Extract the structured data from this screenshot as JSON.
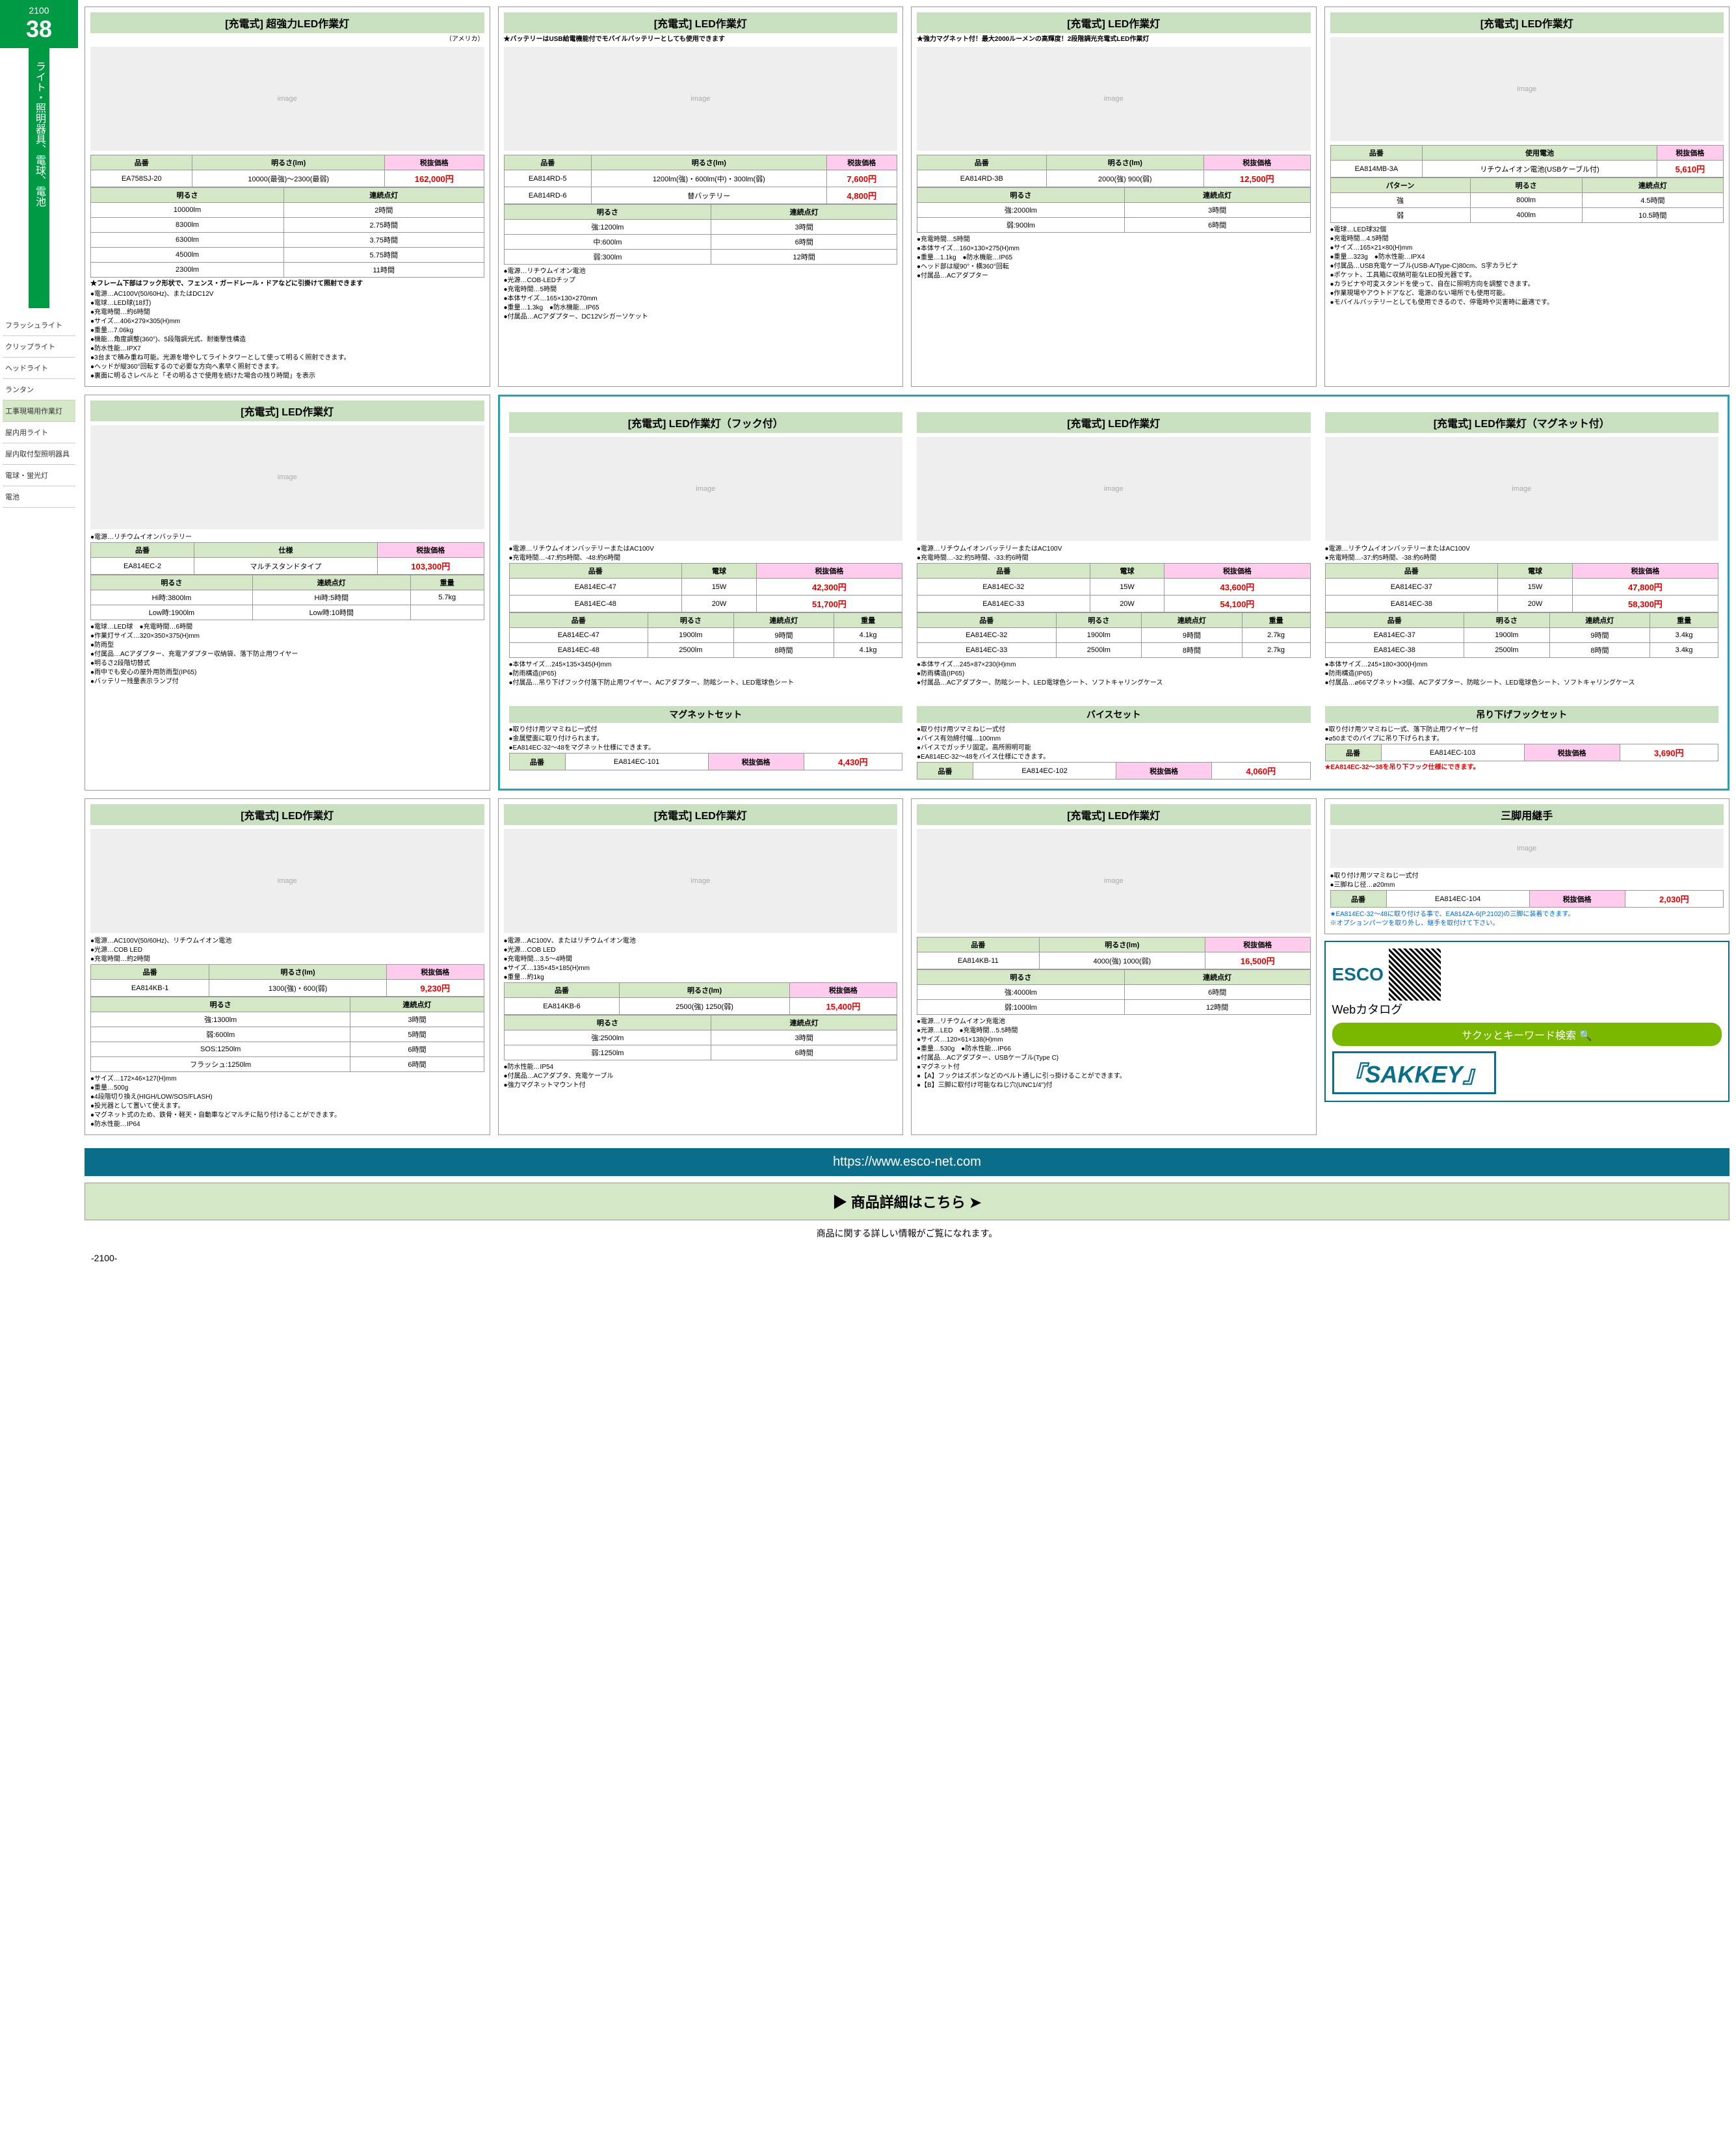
{
  "meta": {
    "page_top": "2100",
    "section_num": "38",
    "section_name": "ライト・照明器具、電球、電池",
    "page_bottom": "-2100-"
  },
  "side_nav": [
    {
      "label": "フラッシュライト"
    },
    {
      "label": "クリップライト"
    },
    {
      "label": "ヘッドライト"
    },
    {
      "label": "ランタン"
    },
    {
      "label": "工事現場用作業灯",
      "active": true
    },
    {
      "label": "屋内用ライト"
    },
    {
      "label": "屋内取付型照明器具"
    },
    {
      "label": "電球・蛍光灯"
    },
    {
      "label": "電池"
    }
  ],
  "cards": {
    "c1": {
      "title": "[充電式] 超強力LED作業灯",
      "origin": "（アメリカ）",
      "th": [
        "品番",
        "明るさ(lm)",
        "税抜価格"
      ],
      "row": [
        "EA758SJ-20",
        "10000(最強)～2300(最弱)",
        "162,000円"
      ],
      "spec_th": [
        "明るさ",
        "連続点灯"
      ],
      "spec": [
        [
          "10000lm",
          "2時間"
        ],
        [
          "8300lm",
          "2.75時間"
        ],
        [
          "6300lm",
          "3.75時間"
        ],
        [
          "4500lm",
          "5.75時間"
        ],
        [
          "2300lm",
          "11時間"
        ]
      ],
      "star": "★フレーム下部はフック形状で、フェンス・ガードレール・ドアなどに引掛けて照射できます",
      "notes": [
        "電源…AC100V(50/60Hz)、またはDC12V",
        "電球…LED球(18灯)",
        "充電時間…約6時間",
        "サイズ…406×279×305(H)mm",
        "重量…7.06kg",
        "機能…角度調整(360°)、5段階調光式、耐衝撃性構造",
        "防水性能…IPX7",
        "3台まで積み重ね可能。光源を増やしてライトタワーとして使って明るく照射できます。",
        "ヘッドが縦360°回転するので必要な方向へ素早く照射できます。",
        "裏面に明るさレベルと「その明るさで使用を続けた場合の残り時間」を表示"
      ]
    },
    "c2": {
      "title": "[充電式] LED作業灯",
      "star": "★バッテリーはUSB給電機能付でモバイルバッテリーとしても使用できます",
      "th": [
        "品番",
        "明るさ(lm)",
        "税抜価格"
      ],
      "row1": [
        "EA814RD-5",
        "1200lm(強)・600lm(中)・300lm(弱)",
        "7,600円"
      ],
      "row2": [
        "EA814RD-6",
        "替バッテリー",
        "4,800円"
      ],
      "spec_th": [
        "明るさ",
        "連続点灯"
      ],
      "spec": [
        [
          "強:1200lm",
          "3時間"
        ],
        [
          "中:600lm",
          "6時間"
        ],
        [
          "弱:300lm",
          "12時間"
        ]
      ],
      "notes": [
        "電源…リチウムイオン電池",
        "光源…COB-LEDチップ",
        "充電時間…5時間",
        "本体サイズ…165×130×270mm",
        "重量…1.3kg　●防水機能…IP65",
        "付属品…ACアダプター、DC12Vシガーソケット"
      ]
    },
    "c3": {
      "title": "[充電式] LED作業灯",
      "star": "★強力マグネット付！最大2000ルーメンの高輝度！2段階調光充電式LED作業灯",
      "star2": "●電源…リチウムイオン電池\n●電球…LED球",
      "th": [
        "品番",
        "明るさ(lm)",
        "税抜価格"
      ],
      "row": [
        "EA814RD-3B",
        "2000(強) 900(弱)",
        "12,500円"
      ],
      "spec_th": [
        "明るさ",
        "連続点灯"
      ],
      "spec": [
        [
          "強:2000lm",
          "3時間"
        ],
        [
          "弱:900lm",
          "6時間"
        ]
      ],
      "notes": [
        "充電時間…5時間",
        "本体サイズ…160×130×275(H)mm",
        "重量…1.1kg　●防水機能…IP65",
        "ヘッド部は縦90°・横360°回転",
        "付属品…ACアダプター"
      ]
    },
    "c4": {
      "title": "[充電式] LED作業灯",
      "th": [
        "品番",
        "使用電池",
        "税抜価格"
      ],
      "row": [
        "EA814MB-3A",
        "リチウムイオン電池(USBケーブル付)",
        "5,610円"
      ],
      "spec_th": [
        "パターン",
        "明るさ",
        "連続点灯"
      ],
      "spec": [
        [
          "強",
          "800lm",
          "4.5時間"
        ],
        [
          "弱",
          "400lm",
          "10.5時間"
        ]
      ],
      "notes": [
        "電球…LED球32個",
        "充電時間…4.5時間",
        "サイズ…165×21×80(H)mm",
        "重量…323g　●防水性能…IPX4",
        "付属品…USB充電ケーブル(USB-A/Type-C)80cm、S字カラビナ",
        "ポケット、工具箱に収納可能なLED投光器です。",
        "カラビナや可変スタンドを使って、自在に照明方向を調整できます。",
        "作業現場やアウトドアなど、電源のない場所でも使用可能。",
        "モバイルバッテリーとしても使用できるので、停電時や災害時に最適です。"
      ]
    },
    "c5": {
      "title": "[充電式] LED作業灯",
      "bullet": "●電源…リチウムイオンバッテリー",
      "th": [
        "品番",
        "仕様",
        "税抜価格"
      ],
      "row": [
        "EA814EC-2",
        "マルチスタンドタイプ",
        "103,300円"
      ],
      "spec_th": [
        "明るさ",
        "連続点灯",
        "重量"
      ],
      "spec": [
        [
          "Hi時:3800lm",
          "Hi時:5時間",
          "5.7kg"
        ],
        [
          "Low時:1900lm",
          "Low時:10時間",
          ""
        ]
      ],
      "notes": [
        "電球…LED球　●充電時間…6時間",
        "作業灯サイズ…320×350×375(H)mm",
        "防雨型",
        "付属品…ACアダプター、充電アダプター収納袋、落下防止用ワイヤー",
        "明るさ2段階切替式",
        "雨中でも安心の屋外用防雨型(IP65)",
        "バッテリー残量表示ランプ付"
      ]
    },
    "ec_hook": {
      "title": "[充電式] LED作業灯（フック付）",
      "bullets": [
        "電源…リチウムイオンバッテリーまたはAC100V",
        "充電時間…-47:約5時間、-48:約6時間"
      ],
      "th": [
        "品番",
        "電球",
        "税抜価格"
      ],
      "rows": [
        [
          "EA814EC-47",
          "15W",
          "42,300円"
        ],
        [
          "EA814EC-48",
          "20W",
          "51,700円"
        ]
      ],
      "spec_th": [
        "品番",
        "明るさ",
        "連続点灯",
        "重量"
      ],
      "spec": [
        [
          "EA814EC-47",
          "1900lm",
          "9時間",
          "4.1kg"
        ],
        [
          "EA814EC-48",
          "2500lm",
          "8時間",
          "4.1kg"
        ]
      ],
      "notes": [
        "本体サイズ…245×135×345(H)mm",
        "防雨構造(IP65)",
        "付属品…吊り下げフック付落下防止用ワイヤー、ACアダプター、防眩シート、LED電球色シート"
      ]
    },
    "ec_std": {
      "title": "[充電式] LED作業灯",
      "bullets": [
        "電源…リチウムイオンバッテリーまたはAC100V",
        "充電時間…-32:約5時間、-33:約6時間"
      ],
      "th": [
        "品番",
        "電球",
        "税抜価格"
      ],
      "rows": [
        [
          "EA814EC-32",
          "15W",
          "43,600円"
        ],
        [
          "EA814EC-33",
          "20W",
          "54,100円"
        ]
      ],
      "spec_th": [
        "品番",
        "明るさ",
        "連続点灯",
        "重量"
      ],
      "spec": [
        [
          "EA814EC-32",
          "1900lm",
          "9時間",
          "2.7kg"
        ],
        [
          "EA814EC-33",
          "2500lm",
          "8時間",
          "2.7kg"
        ]
      ],
      "notes": [
        "本体サイズ…245×87×230(H)mm",
        "防雨構造(IP65)",
        "付属品…ACアダプター、防眩シート、LED電球色シート、ソフトキャリングケース"
      ]
    },
    "ec_mag": {
      "title": "[充電式] LED作業灯（マグネット付）",
      "bullets": [
        "電源…リチウムイオンバッテリーまたはAC100V",
        "充電時間…-37:約5時間、-38:約6時間"
      ],
      "th": [
        "品番",
        "電球",
        "税抜価格"
      ],
      "rows": [
        [
          "EA814EC-37",
          "15W",
          "47,800円"
        ],
        [
          "EA814EC-38",
          "20W",
          "58,300円"
        ]
      ],
      "spec_th": [
        "品番",
        "明るさ",
        "連続点灯",
        "重量"
      ],
      "spec": [
        [
          "EA814EC-37",
          "1900lm",
          "9時間",
          "3.4kg"
        ],
        [
          "EA814EC-38",
          "2500lm",
          "8時間",
          "3.4kg"
        ]
      ],
      "notes": [
        "本体サイズ…245×180×300(H)mm",
        "防雨構造(IP65)",
        "付属品…⌀66マグネット×3個、ACアダプター、防眩シート、LED電球色シート、ソフトキャリングケース"
      ]
    },
    "acc1": {
      "title": "マグネットセット",
      "bullets": [
        "取り付け用ツマミねじ一式付",
        "金属壁面に取り付けられます。",
        "EA814EC-32～48をマグネット仕様にできます。"
      ],
      "th": [
        "品番",
        "税抜価格"
      ],
      "row": [
        "EA814EC-101",
        "4,430円"
      ]
    },
    "acc2": {
      "title": "バイスセット",
      "bullets": [
        "取り付け用ツマミねじ一式付",
        "バイス有効締付幅…100mm",
        "バイスでガッチリ固定。高所照明可能",
        "EA814EC-32～48をバイス仕様にできます。"
      ],
      "th": [
        "品番",
        "税抜価格"
      ],
      "row": [
        "EA814EC-102",
        "4,060円"
      ]
    },
    "acc3": {
      "title": "吊り下げフックセット",
      "bullets": [
        "取り付け用ツマミねじ一式、落下防止用ワイヤー付",
        "⌀50までのパイプに吊り下げられます。"
      ],
      "th": [
        "品番",
        "税抜価格"
      ],
      "row": [
        "EA814EC-103",
        "3,690円"
      ],
      "foot": "★EA814EC-32～38を吊り下フック仕様にできます。"
    },
    "kb1": {
      "title": "[充電式] LED作業灯",
      "bullets": [
        "電源…AC100V(50/60Hz)、リチウムイオン電池",
        "光源…COB LED",
        "充電時間…約2時間"
      ],
      "th": [
        "品番",
        "明るさ(lm)",
        "税抜価格"
      ],
      "row": [
        "EA814KB-1",
        "1300(強)・600(弱)",
        "9,230円"
      ],
      "spec_th": [
        "明るさ",
        "連続点灯"
      ],
      "spec": [
        [
          "強:1300lm",
          "3時間"
        ],
        [
          "弱:600lm",
          "5時間"
        ],
        [
          "SOS:1250lm",
          "6時間"
        ],
        [
          "フラッシュ:1250lm",
          "6時間"
        ]
      ],
      "notes": [
        "サイズ…172×46×127(H)mm",
        "重量…500g",
        "4段階切り換え(HIGH/LOW/SOS/FLASH)",
        "投光器として置いて使えます。",
        "マグネット式のため、鉄骨・軽天・自動車などマルチに貼り付けることができます。",
        "防水性能…IP64"
      ]
    },
    "kb6": {
      "title": "[充電式] LED作業灯",
      "bullets": [
        "電源…AC100V、またはリチウムイオン電池",
        "光源…COB LED",
        "充電時間…3.5～4時間",
        "サイズ…135×45×185(H)mm",
        "重量…約1kg"
      ],
      "th": [
        "品番",
        "明るさ(lm)",
        "税抜価格"
      ],
      "row": [
        "EA814KB-6",
        "2500(強) 1250(弱)",
        "15,400円"
      ],
      "spec_th": [
        "明るさ",
        "連続点灯"
      ],
      "spec": [
        [
          "強:2500lm",
          "3時間"
        ],
        [
          "弱:1250lm",
          "6時間"
        ]
      ],
      "notes": [
        "防水性能…IP54",
        "付属品…ACアダプタ、充電ケーブル",
        "強力マグネットマウント付"
      ]
    },
    "kb11": {
      "title": "[充電式] LED作業灯",
      "th": [
        "品番",
        "明るさ(lm)",
        "税抜価格"
      ],
      "row": [
        "EA814KB-11",
        "4000(強) 1000(弱)",
        "16,500円"
      ],
      "spec_th": [
        "明るさ",
        "連続点灯"
      ],
      "spec": [
        [
          "強:4000lm",
          "6時間"
        ],
        [
          "弱:1000lm",
          "12時間"
        ]
      ],
      "notes": [
        "電源…リチウムイオン充電池",
        "光源…LED　●充電時間…5.5時間",
        "サイズ…120×61×138(H)mm",
        "重量…530g　●防水性能…IP66",
        "付属品…ACアダプター、USBケーブル(Type C)",
        "マグネット付",
        "【A】フックはズボンなどのベルト通しに引っ掛けることができます。",
        "【B】三脚に取付け可能なねじ穴(UNC1/4\")付"
      ]
    },
    "tripod": {
      "title": "三脚用継手",
      "bullets": [
        "取り付け用ツマミねじ一式付",
        "三脚ねじ径…⌀20mm"
      ],
      "th": [
        "品番",
        "税抜価格"
      ],
      "row": [
        "EA814EC-104",
        "2,030円"
      ],
      "foot": "★EA814EC-32～48に取り付ける事で、EA814ZA-6(P.2102)の三脚に装着できます。\n※オプションパーツを取り外し、継手を取付けて下さい。"
    }
  },
  "sakkey": {
    "brand": "ESCO",
    "sub": "Webカタログ",
    "search": "サクッとキーワード検索",
    "name": "『SAKKEY』"
  },
  "banner_url": "https://www.esco-net.com",
  "banner_btn": "商品詳細はこちら",
  "footer": "商品に関する詳しい情報がご覧になれます。"
}
